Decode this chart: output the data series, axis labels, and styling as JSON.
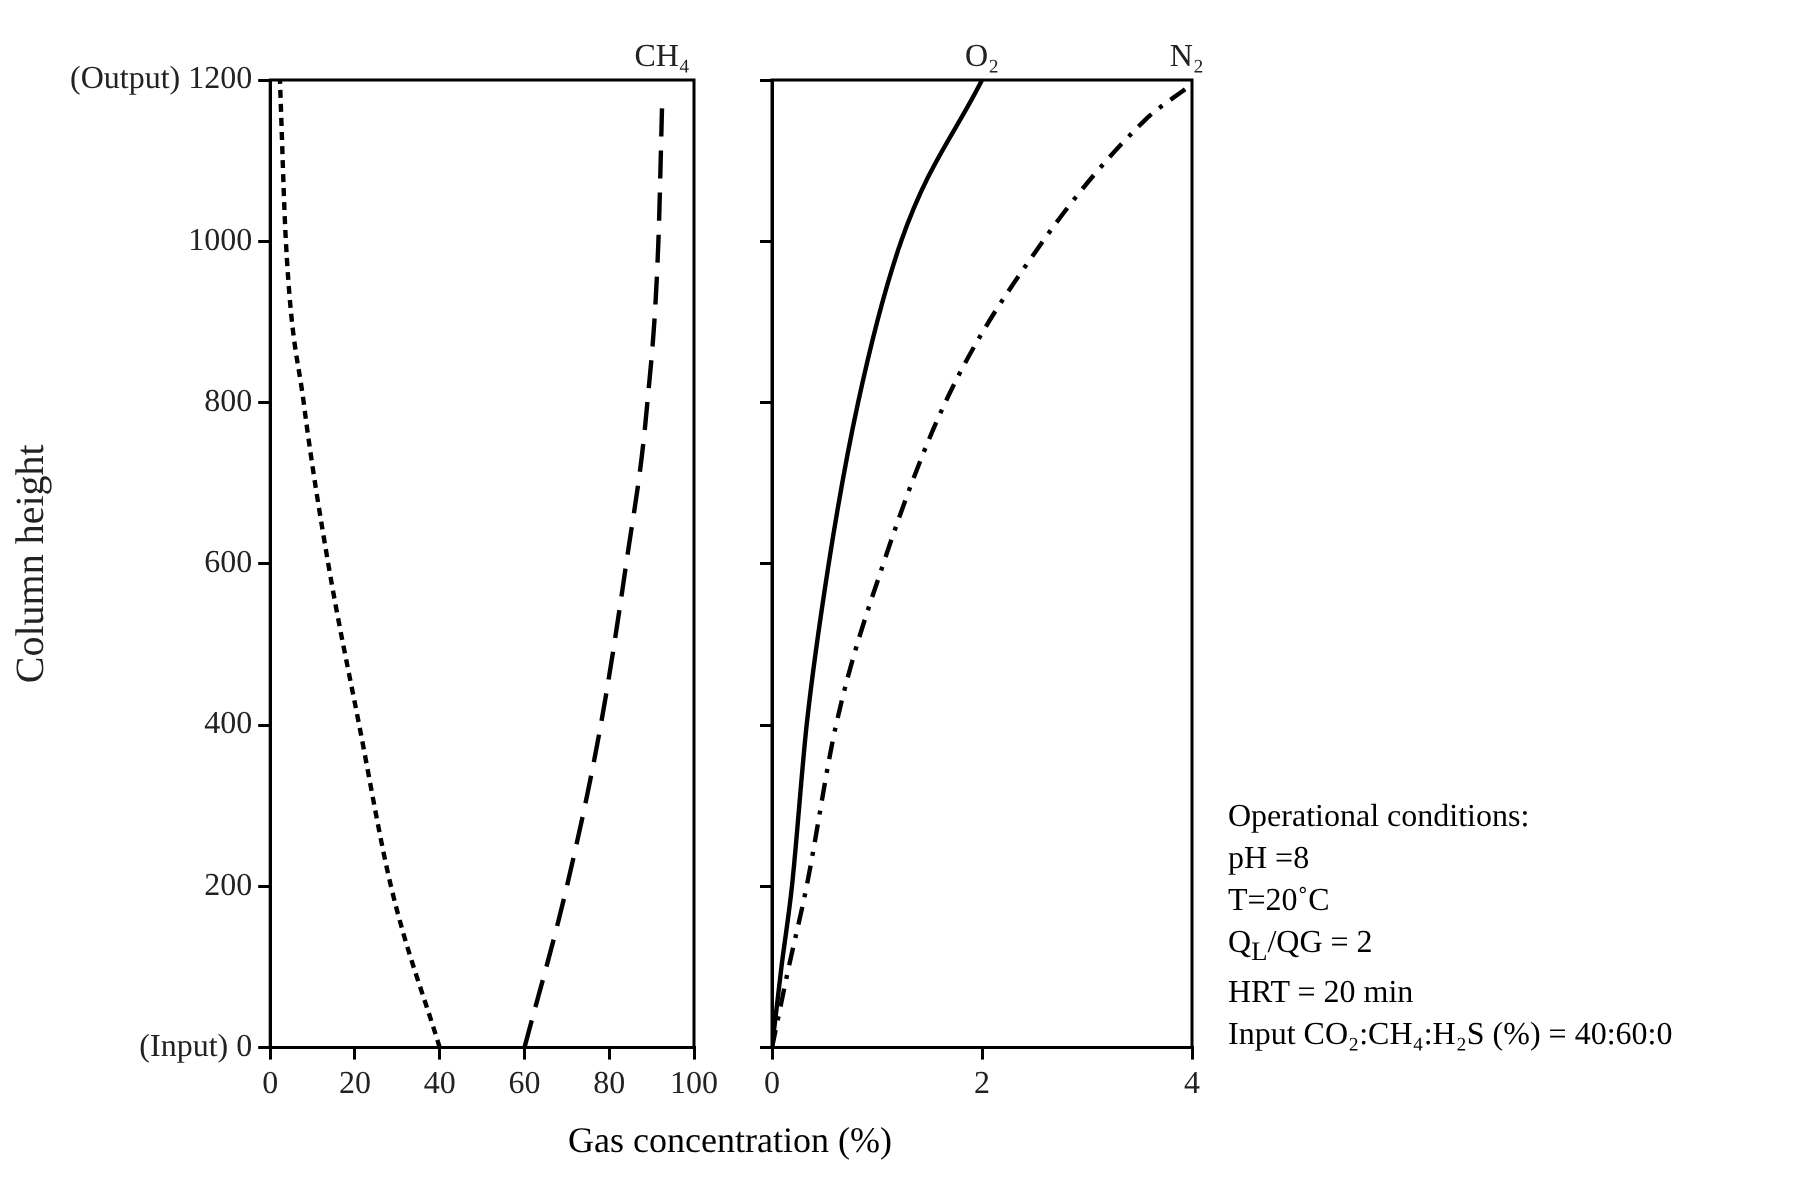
{
  "chart_data": [
    {
      "type": "line",
      "xlabel": "Gas concentration (%)",
      "ylabel": "Column height",
      "xlim": [
        0,
        100
      ],
      "xticks": [
        0,
        20,
        40,
        60,
        80,
        100
      ],
      "ylim": [
        0,
        1200
      ],
      "yticks": [
        {
          "value": 0,
          "label": "(Input) 0"
        },
        200,
        400,
        600,
        800,
        1000,
        {
          "value": 1200,
          "label": "(Output) 1200"
        }
      ],
      "grid": false,
      "legend": false,
      "marker": "none",
      "series": [
        {
          "color": "#000000",
          "line_style": "dotted",
          "x": [
            40,
            28.5,
            21,
            13.7,
            7.9,
            3.7,
            2.3
          ],
          "values": [
            0,
            200,
            400,
            600,
            800,
            1000,
            1200
          ]
        },
        {
          "name": "CH₄",
          "color": "#000000",
          "line_style": "dashed",
          "x": [
            60,
            70,
            78,
            84,
            89,
            91.6,
            92.5
          ],
          "values": [
            0,
            200,
            400,
            600,
            800,
            1000,
            1175
          ]
        }
      ]
    },
    {
      "type": "line",
      "xlim": [
        0,
        4
      ],
      "xticks": [
        0,
        2,
        4
      ],
      "ylim": [
        0,
        1200
      ],
      "yticks": [
        0,
        200,
        400,
        600,
        800,
        1000,
        1200
      ],
      "tick_labels": "x",
      "grid": false,
      "legend": false,
      "marker": "none",
      "annotations": [
        "Operational conditions:",
        "pH =8",
        "T=20˚C",
        "Q$_{L}$/QG = 2",
        "HRT = 20 min",
        "Input CO₂:CH₄:H₂S (%) = 40:60:0"
      ],
      "series": [
        {
          "name": "O₂",
          "color": "#000000",
          "line_style": "solid",
          "x": [
            0,
            0.09,
            0.19,
            0.33,
            0.54,
            0.82,
            1.23,
            2.0
          ],
          "values": [
            0,
            100,
            200,
            400,
            600,
            800,
            1000,
            1200
          ]
        },
        {
          "name": "N₂",
          "color": "#000000",
          "line_style": "dashdot",
          "x": [
            0,
            0.16,
            0.33,
            0.61,
            1.06,
            1.65,
            2.58,
            3.55,
            3.95
          ],
          "values": [
            0,
            100,
            200,
            400,
            600,
            800,
            1000,
            1150,
            1190
          ]
        }
      ]
    }
  ]
}
